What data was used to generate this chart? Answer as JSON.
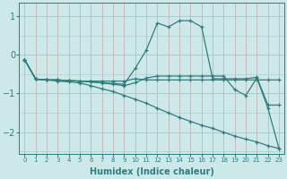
{
  "xlabel": "Humidex (Indice chaleur)",
  "bg_color": "#cde8e8",
  "line_color": "#2d7f7f",
  "xlim": [
    -0.5,
    23.5
  ],
  "ylim": [
    -2.55,
    1.35
  ],
  "yticks": [
    -2,
    -1,
    0,
    1
  ],
  "xticks": [
    0,
    1,
    2,
    3,
    4,
    5,
    6,
    7,
    8,
    9,
    10,
    11,
    12,
    13,
    14,
    15,
    16,
    17,
    18,
    19,
    20,
    21,
    22,
    23
  ],
  "lines": [
    {
      "x": [
        0,
        1,
        2,
        3,
        4,
        5,
        6,
        7,
        8,
        9,
        10,
        11,
        12,
        13,
        14,
        15,
        16,
        17,
        18,
        19,
        20,
        21,
        22,
        23
      ],
      "y": [
        -0.13,
        -0.63,
        -0.65,
        -0.65,
        -0.67,
        -0.68,
        -0.68,
        -0.68,
        -0.68,
        -0.68,
        -0.62,
        -0.65,
        -0.65,
        -0.65,
        -0.65,
        -0.65,
        -0.65,
        -0.65,
        -0.65,
        -0.65,
        -0.65,
        -0.65,
        -0.65,
        -0.65
      ]
    },
    {
      "x": [
        0,
        1,
        2,
        3,
        4,
        5,
        6,
        7,
        8,
        9,
        10,
        11,
        12,
        13,
        14,
        15,
        16,
        17,
        18,
        19,
        20,
        21,
        22,
        23
      ],
      "y": [
        -0.13,
        -0.63,
        -0.65,
        -0.65,
        -0.67,
        -0.68,
        -0.7,
        -0.72,
        -0.74,
        -0.76,
        -0.35,
        0.12,
        0.82,
        0.72,
        0.88,
        0.88,
        0.72,
        -0.62,
        -0.62,
        -0.62,
        -0.62,
        -0.58,
        -1.3,
        -1.3
      ]
    },
    {
      "x": [
        0,
        1,
        2,
        3,
        4,
        5,
        6,
        7,
        8,
        9,
        10,
        11,
        12,
        13,
        14,
        15,
        16,
        17,
        18,
        19,
        20,
        21,
        22,
        23
      ],
      "y": [
        -0.13,
        -0.63,
        -0.65,
        -0.65,
        -0.67,
        -0.68,
        -0.7,
        -0.73,
        -0.76,
        -0.8,
        -0.72,
        -0.6,
        -0.55,
        -0.55,
        -0.55,
        -0.55,
        -0.55,
        -0.55,
        -0.55,
        -0.9,
        -1.05,
        -0.6,
        -1.38,
        -2.42
      ]
    },
    {
      "x": [
        0,
        1,
        2,
        3,
        4,
        5,
        6,
        7,
        8,
        9,
        10,
        11,
        12,
        13,
        14,
        15,
        16,
        17,
        18,
        19,
        20,
        21,
        22,
        23
      ],
      "y": [
        -0.13,
        -0.63,
        -0.65,
        -0.68,
        -0.7,
        -0.73,
        -0.8,
        -0.88,
        -0.95,
        -1.05,
        -1.15,
        -1.25,
        -1.38,
        -1.5,
        -1.62,
        -1.72,
        -1.82,
        -1.9,
        -2.0,
        -2.1,
        -2.18,
        -2.25,
        -2.35,
        -2.42
      ]
    }
  ]
}
